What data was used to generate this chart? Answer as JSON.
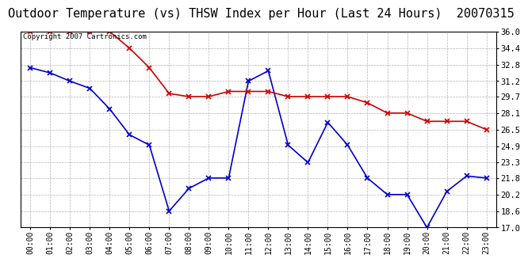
{
  "title": "Outdoor Temperature (vs) THSW Index per Hour (Last 24 Hours)  20070315",
  "copyright_text": "Copyright 2007 Cartronics.com",
  "hours": [
    "00:00",
    "01:00",
    "02:00",
    "03:00",
    "04:00",
    "05:00",
    "06:00",
    "07:00",
    "08:00",
    "09:00",
    "10:00",
    "11:00",
    "12:00",
    "13:00",
    "14:00",
    "15:00",
    "16:00",
    "17:00",
    "18:00",
    "19:00",
    "20:00",
    "21:00",
    "22:00",
    "23:00"
  ],
  "blue_data": [
    32.5,
    32.0,
    31.2,
    30.5,
    28.5,
    26.0,
    25.0,
    18.6,
    20.8,
    21.8,
    21.8,
    31.2,
    32.2,
    25.0,
    23.3,
    27.2,
    25.0,
    21.8,
    20.2,
    20.2,
    17.0,
    20.5,
    22.0,
    21.8
  ],
  "red_data": [
    36.0,
    36.0,
    36.0,
    36.0,
    36.0,
    34.4,
    32.5,
    30.0,
    29.7,
    29.7,
    30.2,
    30.2,
    30.2,
    29.7,
    29.7,
    29.7,
    29.7,
    29.1,
    28.1,
    28.1,
    27.3,
    27.3,
    27.3,
    26.5
  ],
  "ylim_min": 17.0,
  "ylim_max": 36.0,
  "yticks": [
    17.0,
    18.6,
    20.2,
    21.8,
    23.3,
    24.9,
    26.5,
    28.1,
    29.7,
    31.2,
    32.8,
    34.4,
    36.0
  ],
  "blue_color": "#0000cc",
  "red_color": "#cc0000",
  "bg_color": "#ffffff",
  "grid_color": "#aaaaaa",
  "title_fontsize": 11,
  "copyright_fontsize": 6.5
}
